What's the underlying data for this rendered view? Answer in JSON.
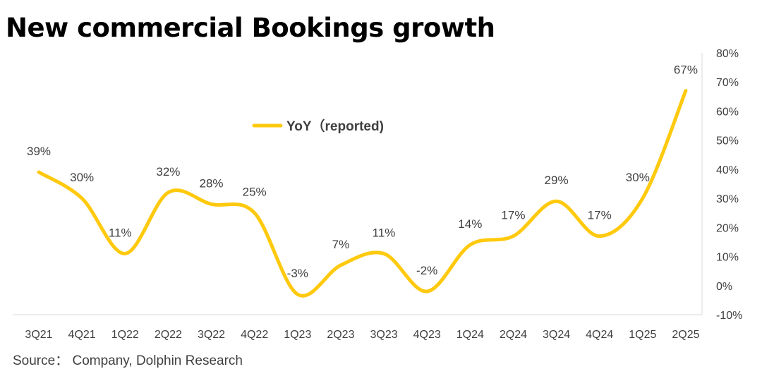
{
  "title": "New commercial Bookings growth",
  "source": "Source： Company, Dolphin Research",
  "colors": {
    "line": "#FFC90E",
    "text": "#404040",
    "axis": "#D9D9D9"
  },
  "chart_data": {
    "type": "line",
    "title": "New commercial Bookings growth",
    "categories": [
      "3Q21",
      "4Q21",
      "1Q22",
      "2Q22",
      "3Q22",
      "4Q22",
      "1Q23",
      "2Q23",
      "3Q23",
      "4Q23",
      "1Q24",
      "2Q24",
      "3Q24",
      "4Q24",
      "1Q25",
      "2Q25"
    ],
    "series": [
      {
        "name": "YoY（reported)",
        "values": [
          39,
          30,
          11,
          32,
          28,
          25,
          -3,
          7,
          11,
          -2,
          14,
          17,
          29,
          17,
          30,
          67
        ],
        "labels": [
          "39%",
          "30%",
          "11%",
          "32%",
          "28%",
          "25%",
          "-3%",
          "7%",
          "11%",
          "-2%",
          "14%",
          "17%",
          "29%",
          "17%",
          "30%",
          "67%"
        ]
      }
    ],
    "ylim": [
      -10,
      80
    ],
    "yticks": [
      "-10%",
      "0%",
      "10%",
      "20%",
      "30%",
      "40%",
      "50%",
      "60%",
      "70%",
      "80%"
    ],
    "ytick_values": [
      -10,
      0,
      10,
      20,
      30,
      40,
      50,
      60,
      70,
      80
    ],
    "y_axis_side": "right",
    "legend_position": "top-center",
    "grid": false,
    "smooth": true
  }
}
